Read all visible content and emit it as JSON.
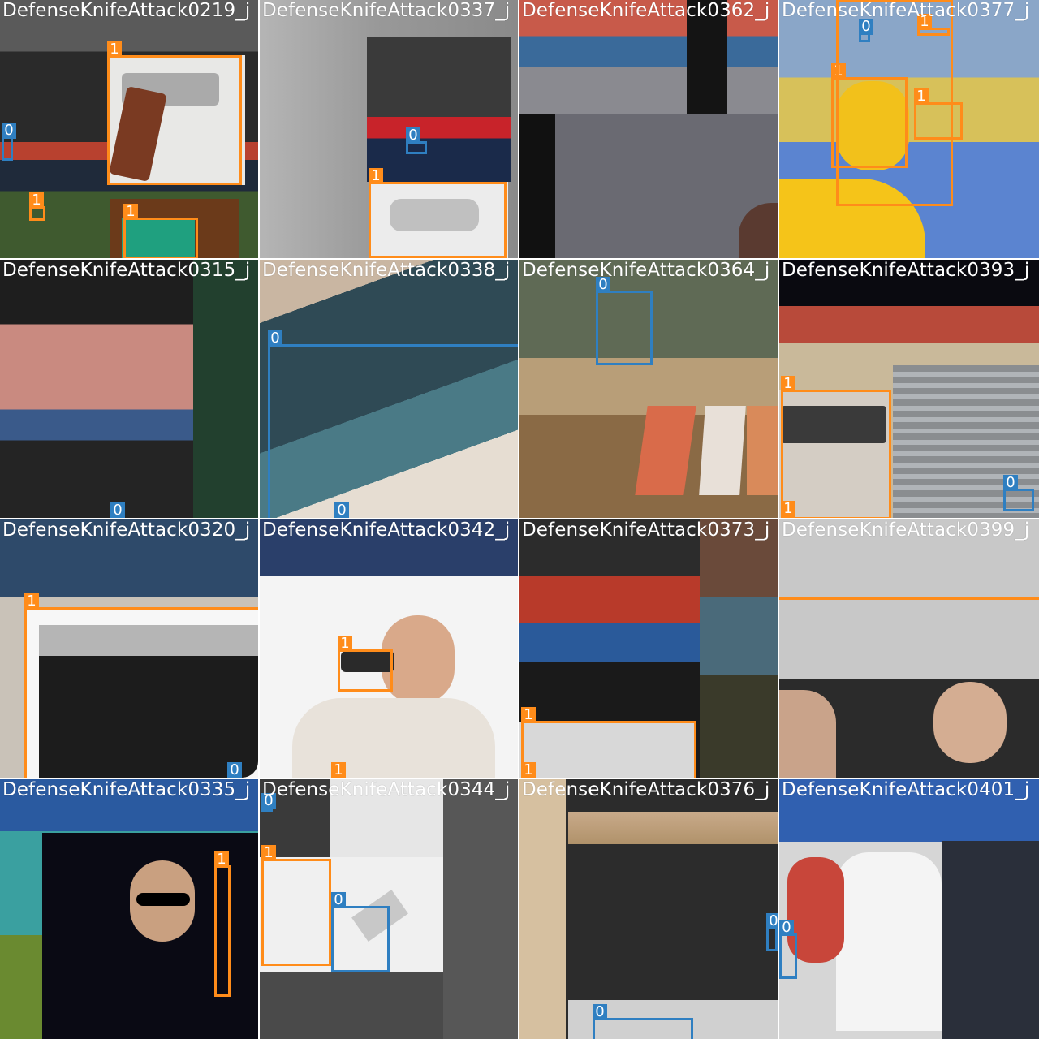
{
  "mosaic": {
    "colors": {
      "class_0": "#2f7fc1",
      "class_1": "#ff8c1a",
      "label_text": "#ffffff"
    },
    "tiles": [
      {
        "title": "DefenseKnifeAttack0219_j",
        "boxes": [
          {
            "label": "1",
            "cls": 1
          },
          {
            "label": "0",
            "cls": 0
          },
          {
            "label": "1",
            "cls": 1
          },
          {
            "label": "1",
            "cls": 1
          }
        ]
      },
      {
        "title": "DefenseKnifeAttack0337_j",
        "boxes": [
          {
            "label": "0",
            "cls": 0
          },
          {
            "label": "1",
            "cls": 1
          }
        ]
      },
      {
        "title": "DefenseKnifeAttack0362_j",
        "boxes": []
      },
      {
        "title": "DefenseKnifeAttack0377_j",
        "boxes": [
          {
            "label": "0",
            "cls": 0
          },
          {
            "label": "1",
            "cls": 1
          },
          {
            "label": "1",
            "cls": 1
          },
          {
            "label": "1",
            "cls": 1
          },
          {
            "label": "1",
            "cls": 1
          }
        ]
      },
      {
        "title": "DefenseKnifeAttack0315_j",
        "boxes": [
          {
            "label": "0",
            "cls": 0
          }
        ]
      },
      {
        "title": "DefenseKnifeAttack0338_j",
        "boxes": [
          {
            "label": "0",
            "cls": 0
          },
          {
            "label": "0",
            "cls": 0
          }
        ]
      },
      {
        "title": "DefenseKnifeAttack0364_j",
        "boxes": [
          {
            "label": "0",
            "cls": 0
          }
        ]
      },
      {
        "title": "DefenseKnifeAttack0393_j",
        "boxes": [
          {
            "label": "1",
            "cls": 1
          },
          {
            "label": "0",
            "cls": 0
          },
          {
            "label": "1",
            "cls": 1
          }
        ]
      },
      {
        "title": "DefenseKnifeAttack0320_j",
        "boxes": [
          {
            "label": "1",
            "cls": 1
          },
          {
            "label": "0",
            "cls": 0
          }
        ]
      },
      {
        "title": "DefenseKnifeAttack0342_j",
        "boxes": [
          {
            "label": "1",
            "cls": 1
          },
          {
            "label": "1",
            "cls": 1
          }
        ]
      },
      {
        "title": "DefenseKnifeAttack0373_j",
        "boxes": [
          {
            "label": "1",
            "cls": 1
          },
          {
            "label": "1",
            "cls": 1
          }
        ]
      },
      {
        "title": "DefenseKnifeAttack0399_j",
        "boxes": []
      },
      {
        "title": "DefenseKnifeAttack0335_j",
        "boxes": [
          {
            "label": "1",
            "cls": 1
          }
        ]
      },
      {
        "title": "DefenseKnifeAttack0344_j",
        "boxes": [
          {
            "label": "0",
            "cls": 0
          },
          {
            "label": "1",
            "cls": 1
          },
          {
            "label": "0",
            "cls": 0
          }
        ]
      },
      {
        "title": "DefenseKnifeAttack0376_j",
        "boxes": [
          {
            "label": "0",
            "cls": 0
          },
          {
            "label": "0",
            "cls": 0
          }
        ]
      },
      {
        "title": "DefenseKnifeAttack0401_j",
        "boxes": [
          {
            "label": "0",
            "cls": 0
          }
        ]
      }
    ]
  }
}
